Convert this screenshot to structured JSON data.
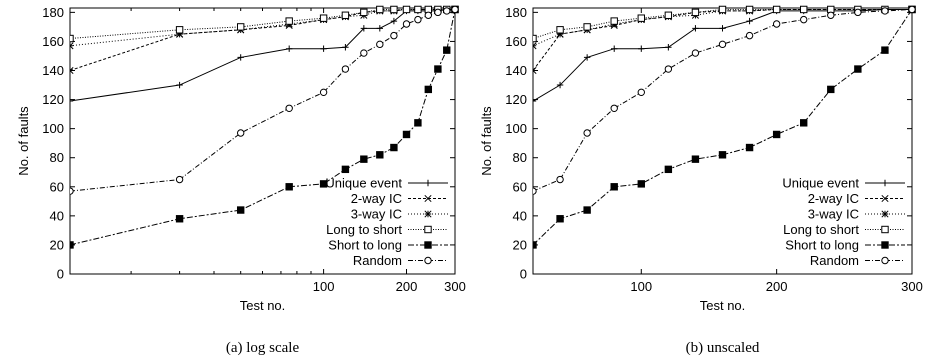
{
  "chart_data": [
    {
      "type": "line",
      "caption": "(a) log scale",
      "xlabel": "Test no.",
      "ylabel": "No. of faults",
      "xscale": "log",
      "xlim": [
        12,
        300
      ],
      "ylim": [
        0,
        183
      ],
      "xticks": [
        100,
        200,
        300
      ],
      "yticks": [
        0,
        20,
        40,
        60,
        80,
        100,
        120,
        140,
        160,
        180
      ],
      "legend_position": "bottom-right",
      "series": [
        {
          "name": "Unique event",
          "marker": "plus",
          "dash": "",
          "x": [
            12,
            30,
            50,
            75,
            100,
            120,
            140,
            160,
            180,
            200,
            220,
            240,
            260,
            280,
            300
          ],
          "y": [
            119,
            130,
            149,
            155,
            155,
            156,
            169,
            169,
            174,
            181,
            181,
            181,
            181,
            182,
            182
          ]
        },
        {
          "name": "2-way IC",
          "marker": "x",
          "dash": "3,2",
          "x": [
            12,
            30,
            50,
            75,
            100,
            120,
            140,
            160,
            180,
            200,
            220,
            240,
            260,
            280,
            300
          ],
          "y": [
            140,
            165,
            168,
            171,
            175,
            177,
            180,
            181,
            181,
            182,
            182,
            182,
            182,
            182,
            182
          ]
        },
        {
          "name": "3-way IC",
          "marker": "star",
          "dash": "1,2",
          "x": [
            12,
            30,
            50,
            75,
            100,
            120,
            140,
            160,
            180,
            200,
            220,
            240,
            260,
            280,
            300
          ],
          "y": [
            157,
            165,
            168,
            172,
            175,
            177,
            178,
            181,
            181,
            182,
            182,
            182,
            182,
            182,
            182
          ]
        },
        {
          "name": "Long to short",
          "marker": "square",
          "dash": "1,1.5",
          "x": [
            12,
            30,
            50,
            75,
            100,
            120,
            140,
            160,
            180,
            200,
            220,
            240,
            260,
            280,
            300
          ],
          "y": [
            162,
            168,
            170,
            174,
            176,
            178,
            180,
            182,
            182,
            182,
            182,
            182,
            182,
            182,
            182
          ]
        },
        {
          "name": "Short to long",
          "marker": "filled-square",
          "dash": "6,2,2,2",
          "x": [
            12,
            30,
            50,
            75,
            100,
            120,
            140,
            160,
            180,
            200,
            220,
            240,
            260,
            280,
            300
          ],
          "y": [
            20,
            38,
            44,
            60,
            62,
            72,
            79,
            82,
            87,
            96,
            104,
            127,
            141,
            154,
            182
          ]
        },
        {
          "name": "Random",
          "marker": "circle",
          "dash": "5,2,1,2",
          "x": [
            12,
            30,
            50,
            75,
            100,
            120,
            140,
            160,
            180,
            200,
            220,
            240,
            260,
            280,
            300
          ],
          "y": [
            57,
            65,
            97,
            114,
            125,
            141,
            152,
            158,
            164,
            172,
            175,
            178,
            180,
            181,
            182
          ]
        }
      ]
    },
    {
      "type": "line",
      "caption": "(b) unscaled",
      "xlabel": "Test no.",
      "ylabel": "No. of faults",
      "xscale": "linear",
      "xlim": [
        20,
        300
      ],
      "ylim": [
        0,
        183
      ],
      "xticks": [
        100,
        200,
        300
      ],
      "yticks": [
        0,
        20,
        40,
        60,
        80,
        100,
        120,
        140,
        160,
        180
      ],
      "legend_position": "bottom-right",
      "series": [
        {
          "name": "Unique event",
          "marker": "plus",
          "dash": "",
          "x": [
            20,
            40,
            60,
            80,
            100,
            120,
            140,
            160,
            180,
            200,
            220,
            240,
            260,
            280,
            300
          ],
          "y": [
            119,
            130,
            149,
            155,
            155,
            156,
            169,
            169,
            174,
            181,
            181,
            181,
            181,
            182,
            182
          ]
        },
        {
          "name": "2-way IC",
          "marker": "x",
          "dash": "3,2",
          "x": [
            20,
            40,
            60,
            80,
            100,
            120,
            140,
            160,
            180,
            200,
            220,
            240,
            260,
            280,
            300
          ],
          "y": [
            140,
            165,
            168,
            171,
            175,
            177,
            180,
            181,
            181,
            182,
            182,
            182,
            182,
            182,
            182
          ]
        },
        {
          "name": "3-way IC",
          "marker": "star",
          "dash": "1,2",
          "x": [
            20,
            40,
            60,
            80,
            100,
            120,
            140,
            160,
            180,
            200,
            220,
            240,
            260,
            280,
            300
          ],
          "y": [
            157,
            165,
            168,
            172,
            175,
            177,
            178,
            181,
            181,
            182,
            182,
            182,
            182,
            182,
            182
          ]
        },
        {
          "name": "Long to short",
          "marker": "square",
          "dash": "1,1.5",
          "x": [
            20,
            40,
            60,
            80,
            100,
            120,
            140,
            160,
            180,
            200,
            220,
            240,
            260,
            280,
            300
          ],
          "y": [
            162,
            168,
            170,
            174,
            176,
            178,
            180,
            182,
            182,
            182,
            182,
            182,
            182,
            182,
            182
          ]
        },
        {
          "name": "Short to long",
          "marker": "filled-square",
          "dash": "6,2,2,2",
          "x": [
            20,
            40,
            60,
            80,
            100,
            120,
            140,
            160,
            180,
            200,
            220,
            240,
            260,
            280,
            300
          ],
          "y": [
            20,
            38,
            44,
            60,
            62,
            72,
            79,
            82,
            87,
            96,
            104,
            127,
            141,
            154,
            182
          ]
        },
        {
          "name": "Random",
          "marker": "circle",
          "dash": "5,2,1,2",
          "x": [
            20,
            40,
            60,
            80,
            100,
            120,
            140,
            160,
            180,
            200,
            220,
            240,
            260,
            280,
            300
          ],
          "y": [
            57,
            65,
            97,
            114,
            125,
            141,
            152,
            158,
            164,
            172,
            175,
            178,
            180,
            181,
            182
          ]
        }
      ]
    }
  ]
}
